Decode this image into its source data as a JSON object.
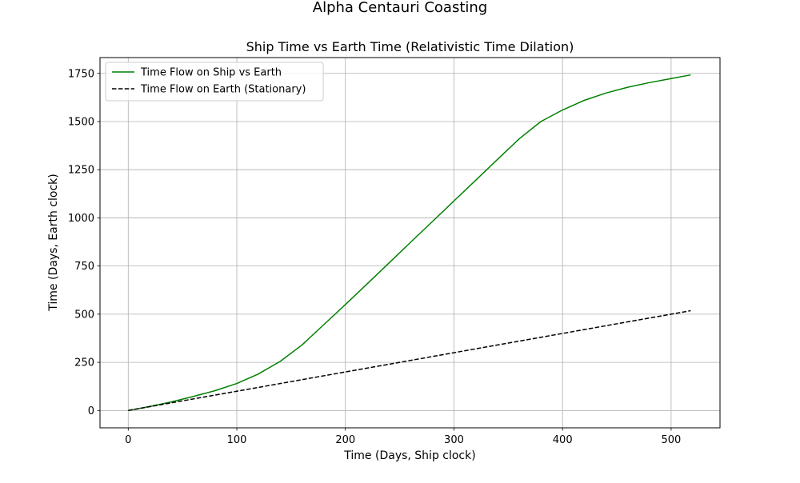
{
  "figure": {
    "suptitle": "Alpha Centauri Coasting"
  },
  "chart_data": {
    "type": "line",
    "title": "Ship Time vs Earth Time (Relativistic Time Dilation)",
    "xlabel": "Time (Days, Ship clock)",
    "ylabel": "Time (Days, Earth clock)",
    "xlim": [
      -26,
      545
    ],
    "ylim": [
      -90,
      1832
    ],
    "xticks": [
      0,
      100,
      200,
      300,
      400,
      500
    ],
    "yticks": [
      0,
      250,
      500,
      750,
      1000,
      1250,
      1500,
      1750
    ],
    "grid": true,
    "legend": {
      "position": "top-left"
    },
    "series": [
      {
        "name": "Time Flow on Ship vs Earth",
        "color": "#008000",
        "style": "solid",
        "x": [
          0,
          20,
          40,
          60,
          80,
          100,
          120,
          140,
          160,
          180,
          200,
          220,
          240,
          260,
          280,
          300,
          320,
          340,
          360,
          380,
          400,
          420,
          440,
          460,
          480,
          500,
          518
        ],
        "y": [
          0,
          21,
          45,
          73,
          103,
          140,
          190,
          255,
          340,
          445,
          550,
          657,
          765,
          873,
          980,
          1088,
          1195,
          1303,
          1410,
          1500,
          1560,
          1610,
          1648,
          1678,
          1702,
          1723,
          1742
        ]
      },
      {
        "name": "Time Flow on Earth (Stationary)",
        "color": "#000000",
        "style": "dashed",
        "x": [
          0,
          518
        ],
        "y": [
          0,
          518
        ]
      }
    ]
  }
}
